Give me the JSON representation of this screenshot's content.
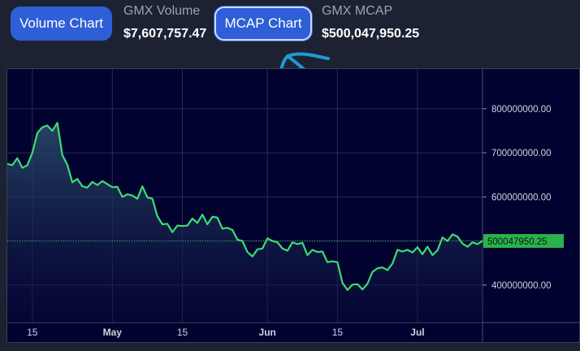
{
  "header": {
    "volume_button_label": "Volume Chart",
    "volume_stat_label": "GMX Volume",
    "volume_stat_value": "$7,607,757.47",
    "mcap_button_label": "MCAP Chart",
    "mcap_stat_label": "GMX MCAP",
    "mcap_stat_value": "$500,047,950.25"
  },
  "colors": {
    "button": "#2f5fd6",
    "line": "#3ddc72",
    "chart_bg": "#020230",
    "annotation": "#1d9bd6",
    "price_tag": "#2bb24c"
  },
  "chart_data": {
    "type": "area",
    "title": "",
    "xlabel": "",
    "ylabel": "",
    "x_ticks": [
      {
        "label": "15",
        "index": 5
      },
      {
        "label": "May",
        "index": 21
      },
      {
        "label": "15",
        "index": 35
      },
      {
        "label": "Jun",
        "index": 52
      },
      {
        "label": "15",
        "index": 66
      },
      {
        "label": "Jul",
        "index": 82
      }
    ],
    "y_ticks": [
      {
        "label": "800000000.00",
        "value": 800000000
      },
      {
        "label": "700000000.00",
        "value": 700000000
      },
      {
        "label": "600000000.00",
        "value": 600000000
      },
      {
        "label": "500000000.00",
        "value": 500000000
      },
      {
        "label": "400000000.00",
        "value": 400000000
      }
    ],
    "ylim": [
      315000000,
      890000000
    ],
    "x_count": 96,
    "grid": true,
    "last_value_label": "500047950.25",
    "last_value": 500047950.25,
    "series": [
      {
        "values": [
          675000000,
          672000000,
          688000000,
          666000000,
          672000000,
          700000000,
          745000000,
          758000000,
          762000000,
          750000000,
          768000000,
          695000000,
          673000000,
          633000000,
          641000000,
          624000000,
          621000000,
          634000000,
          627000000,
          636000000,
          629000000,
          622000000,
          623000000,
          600000000,
          606000000,
          603000000,
          596000000,
          624000000,
          599000000,
          596000000,
          556000000,
          538000000,
          539000000,
          520000000,
          535000000,
          534000000,
          535000000,
          551000000,
          541000000,
          560000000,
          538000000,
          555000000,
          553000000,
          528000000,
          530000000,
          525000000,
          503000000,
          500000000,
          475000000,
          465000000,
          481000000,
          483000000,
          506000000,
          500000000,
          497000000,
          483000000,
          478000000,
          497000000,
          493000000,
          496000000,
          468000000,
          480000000,
          475000000,
          476000000,
          452000000,
          454000000,
          452000000,
          405000000,
          389000000,
          401000000,
          402000000,
          390000000,
          403000000,
          430000000,
          438000000,
          440000000,
          434000000,
          449000000,
          480000000,
          476000000,
          480000000,
          474000000,
          486000000,
          470000000,
          487000000,
          468000000,
          479000000,
          508000000,
          500000000,
          515000000,
          510000000,
          494000000,
          487000000,
          497000000,
          493000000,
          500047950
        ]
      }
    ]
  }
}
